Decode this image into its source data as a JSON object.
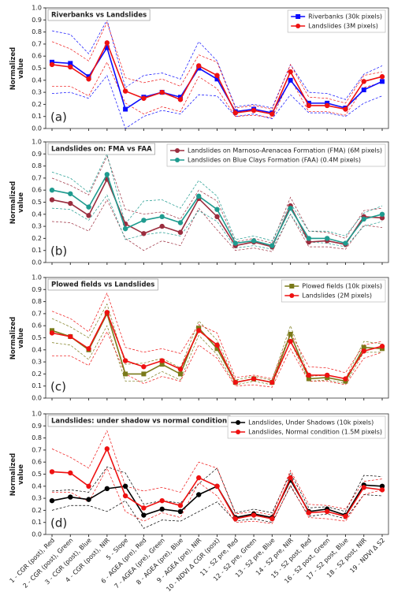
{
  "chart_data": [
    {
      "type": "line",
      "title": "Riverbanks vs Landslides",
      "annotation": "(a)",
      "y_label": "Normalized value",
      "ylim": [
        0,
        1
      ],
      "yticks": [
        {
          "value": 0,
          "label": "0.0"
        },
        0.1,
        0.2,
        0.3,
        0.4,
        0.5,
        0.6,
        0.7,
        0.8,
        0.9,
        {
          "value": 1,
          "label": "1.0"
        }
      ],
      "grid": false,
      "legend": "upper right",
      "series": [
        {
          "name": "Riverbanks (30k pixels)",
          "color": "#0b0bff",
          "marker": "square",
          "values": [
            0.55,
            0.54,
            0.43,
            0.67,
            0.16,
            0.26,
            0.3,
            0.26,
            0.5,
            0.41,
            0.14,
            0.16,
            0.13,
            0.4,
            0.21,
            0.21,
            0.17,
            0.32,
            0.39
          ],
          "upper": [
            0.81,
            0.78,
            0.62,
            0.9,
            0.34,
            0.44,
            0.46,
            0.41,
            0.72,
            0.56,
            0.18,
            0.2,
            0.17,
            0.53,
            0.3,
            0.29,
            0.24,
            0.45,
            0.52
          ],
          "lower": [
            0.29,
            0.3,
            0.25,
            0.44,
            0.0,
            0.1,
            0.15,
            0.12,
            0.28,
            0.27,
            0.1,
            0.12,
            0.08,
            0.28,
            0.13,
            0.13,
            0.1,
            0.21,
            0.27
          ]
        },
        {
          "name": "Landslides (3M pixels)",
          "color": "#ee1111",
          "marker": "circle",
          "values": [
            0.53,
            0.51,
            0.41,
            0.71,
            0.31,
            0.25,
            0.3,
            0.24,
            0.52,
            0.44,
            0.13,
            0.15,
            0.12,
            0.47,
            0.19,
            0.19,
            0.16,
            0.39,
            0.43
          ],
          "upper": [
            0.72,
            0.66,
            0.56,
            0.88,
            0.42,
            0.38,
            0.41,
            0.35,
            0.61,
            0.55,
            0.17,
            0.19,
            0.16,
            0.53,
            0.26,
            0.25,
            0.21,
            0.44,
            0.47
          ],
          "lower": [
            0.35,
            0.35,
            0.27,
            0.55,
            0.21,
            0.12,
            0.18,
            0.14,
            0.43,
            0.33,
            0.1,
            0.11,
            0.09,
            0.41,
            0.14,
            0.14,
            0.11,
            0.34,
            0.38
          ]
        }
      ]
    },
    {
      "type": "line",
      "title": "Landslides on: FMA vs FAA",
      "annotation": "(b)",
      "y_label": "Normalized value",
      "ylim": [
        0,
        1
      ],
      "yticks": [
        {
          "value": 0,
          "label": "0.0"
        },
        0.1,
        0.2,
        0.3,
        0.4,
        0.5,
        0.6,
        0.7,
        0.8,
        0.9,
        {
          "value": 1,
          "label": "1.0"
        }
      ],
      "grid": false,
      "legend": "upper right",
      "series": [
        {
          "name": "Landslides on Marnoso-Arenacea Formation (FMA) (6M pixels)",
          "color": "#9b2d3e",
          "marker": "circle",
          "values": [
            0.52,
            0.49,
            0.39,
            0.69,
            0.32,
            0.24,
            0.3,
            0.25,
            0.53,
            0.38,
            0.14,
            0.17,
            0.13,
            0.47,
            0.17,
            0.18,
            0.15,
            0.38,
            0.37
          ],
          "upper": [
            0.7,
            0.64,
            0.56,
            0.88,
            0.44,
            0.4,
            0.42,
            0.36,
            0.6,
            0.51,
            0.17,
            0.2,
            0.16,
            0.54,
            0.26,
            0.25,
            0.2,
            0.43,
            0.45
          ],
          "lower": [
            0.34,
            0.33,
            0.26,
            0.52,
            0.2,
            0.1,
            0.18,
            0.14,
            0.45,
            0.27,
            0.1,
            0.12,
            0.09,
            0.4,
            0.13,
            0.13,
            0.11,
            0.31,
            0.29
          ]
        },
        {
          "name": "Landslides on Blue Clays Formation (FAA) (0.4M pixels)",
          "color": "#1f9b8f",
          "marker": "circle",
          "values": [
            0.6,
            0.57,
            0.46,
            0.73,
            0.28,
            0.35,
            0.38,
            0.33,
            0.55,
            0.44,
            0.16,
            0.18,
            0.14,
            0.45,
            0.2,
            0.2,
            0.16,
            0.36,
            0.4
          ],
          "upper": [
            0.75,
            0.7,
            0.58,
            0.9,
            0.32,
            0.51,
            0.52,
            0.45,
            0.68,
            0.55,
            0.19,
            0.22,
            0.18,
            0.49,
            0.26,
            0.26,
            0.22,
            0.41,
            0.47
          ],
          "lower": [
            0.45,
            0.44,
            0.35,
            0.56,
            0.19,
            0.23,
            0.25,
            0.22,
            0.43,
            0.34,
            0.12,
            0.14,
            0.11,
            0.4,
            0.17,
            0.16,
            0.13,
            0.3,
            0.34
          ]
        }
      ]
    },
    {
      "type": "line",
      "title": "Plowed fields vs Landslides",
      "annotation": "(c)",
      "y_label": "Normalized value",
      "ylim": [
        0,
        1
      ],
      "yticks": [
        {
          "value": 0,
          "label": "0.0"
        },
        0.1,
        0.2,
        0.3,
        0.4,
        0.5,
        0.6,
        0.7,
        0.8,
        0.9,
        {
          "value": 1,
          "label": "1.0"
        }
      ],
      "grid": false,
      "legend": "upper right",
      "series": [
        {
          "name": "Plowed fields (10k pixels)",
          "color": "#7a7a1a",
          "marker": "square",
          "values": [
            0.56,
            0.51,
            0.4,
            0.7,
            0.2,
            0.2,
            0.28,
            0.2,
            0.58,
            0.41,
            0.13,
            0.16,
            0.13,
            0.53,
            0.16,
            0.17,
            0.14,
            0.42,
            0.41
          ],
          "upper": [
            0.66,
            0.59,
            0.5,
            0.78,
            0.28,
            0.29,
            0.33,
            0.25,
            0.64,
            0.48,
            0.15,
            0.18,
            0.15,
            0.6,
            0.18,
            0.19,
            0.16,
            0.47,
            0.45
          ],
          "lower": [
            0.46,
            0.44,
            0.32,
            0.6,
            0.14,
            0.14,
            0.22,
            0.15,
            0.52,
            0.36,
            0.11,
            0.14,
            0.11,
            0.47,
            0.14,
            0.15,
            0.12,
            0.38,
            0.38
          ]
        },
        {
          "name": "Landslides (2M pixels)",
          "color": "#ee1111",
          "marker": "circle",
          "values": [
            0.54,
            0.51,
            0.41,
            0.71,
            0.31,
            0.26,
            0.31,
            0.24,
            0.56,
            0.44,
            0.13,
            0.16,
            0.13,
            0.47,
            0.19,
            0.19,
            0.16,
            0.39,
            0.43
          ],
          "upper": [
            0.72,
            0.66,
            0.55,
            0.87,
            0.42,
            0.38,
            0.41,
            0.37,
            0.61,
            0.54,
            0.17,
            0.19,
            0.16,
            0.54,
            0.26,
            0.25,
            0.21,
            0.44,
            0.47
          ],
          "lower": [
            0.35,
            0.35,
            0.27,
            0.55,
            0.2,
            0.12,
            0.18,
            0.14,
            0.44,
            0.33,
            0.1,
            0.11,
            0.09,
            0.41,
            0.14,
            0.14,
            0.11,
            0.33,
            0.38
          ]
        }
      ]
    },
    {
      "type": "line",
      "title": "Landslides: under shadow vs normal condition",
      "annotation": "(d)",
      "y_label": "Normalized value",
      "ylim": [
        0,
        1
      ],
      "yticks": [
        {
          "value": 0,
          "label": "0.0"
        },
        0.1,
        0.2,
        0.3,
        0.4,
        0.5,
        0.6,
        0.7,
        0.8,
        0.9,
        {
          "value": 1,
          "label": "1.0"
        }
      ],
      "grid": false,
      "legend": "upper right",
      "categories": [
        "1 - CGR (post), Red",
        "2 - CGR (post), Green",
        "3 - CGR (post), Blue",
        "4 - CGR (post), NIR",
        "5 - Slope",
        "6 - AGEA (pre), Red",
        "7 - AGEA (pre), Green",
        "8 - AGEA (pre), Blue",
        "9 - AGEA (pre), NIR",
        "10 - NDVI Δ CGR (post)",
        "11 - S2 pre, Red",
        "12 - S2 pre, Green",
        "13 - S2 pre, Blue",
        "14 - S2 pre, NIR",
        "15 - S2 post, Red",
        "16 - S2 post, Green",
        "17 - S2 post, Blue",
        "18 - S2 post, NIR",
        "19 - NDVI Δ S2"
      ],
      "series": [
        {
          "name": "Landslides, Under Shadows (10k pixels)",
          "color": "#000000",
          "marker": "circle",
          "values": [
            0.28,
            0.31,
            0.29,
            0.38,
            0.4,
            0.16,
            0.21,
            0.19,
            0.33,
            0.4,
            0.14,
            0.17,
            0.14,
            0.45,
            0.19,
            0.21,
            0.16,
            0.41,
            0.4
          ],
          "upper": [
            0.36,
            0.37,
            0.35,
            0.56,
            0.51,
            0.25,
            0.28,
            0.26,
            0.42,
            0.55,
            0.18,
            0.21,
            0.18,
            0.51,
            0.22,
            0.23,
            0.19,
            0.49,
            0.48
          ],
          "lower": [
            0.2,
            0.24,
            0.24,
            0.19,
            0.28,
            0.05,
            0.12,
            0.11,
            0.19,
            0.27,
            0.11,
            0.13,
            0.1,
            0.4,
            0.15,
            0.17,
            0.13,
            0.33,
            0.32
          ]
        },
        {
          "name": "Landslides, Normal condition (1.5M pixels)",
          "color": "#ee1111",
          "marker": "circle",
          "values": [
            0.52,
            0.51,
            0.4,
            0.71,
            0.32,
            0.22,
            0.28,
            0.24,
            0.47,
            0.4,
            0.13,
            0.16,
            0.13,
            0.47,
            0.18,
            0.19,
            0.15,
            0.39,
            0.37
          ],
          "upper": [
            0.71,
            0.64,
            0.55,
            0.86,
            0.4,
            0.36,
            0.39,
            0.35,
            0.6,
            0.55,
            0.17,
            0.19,
            0.16,
            0.53,
            0.25,
            0.24,
            0.21,
            0.44,
            0.46
          ],
          "lower": [
            0.35,
            0.35,
            0.27,
            0.55,
            0.19,
            0.11,
            0.18,
            0.14,
            0.43,
            0.32,
            0.1,
            0.11,
            0.09,
            0.41,
            0.14,
            0.13,
            0.11,
            0.33,
            0.37
          ]
        }
      ]
    }
  ]
}
